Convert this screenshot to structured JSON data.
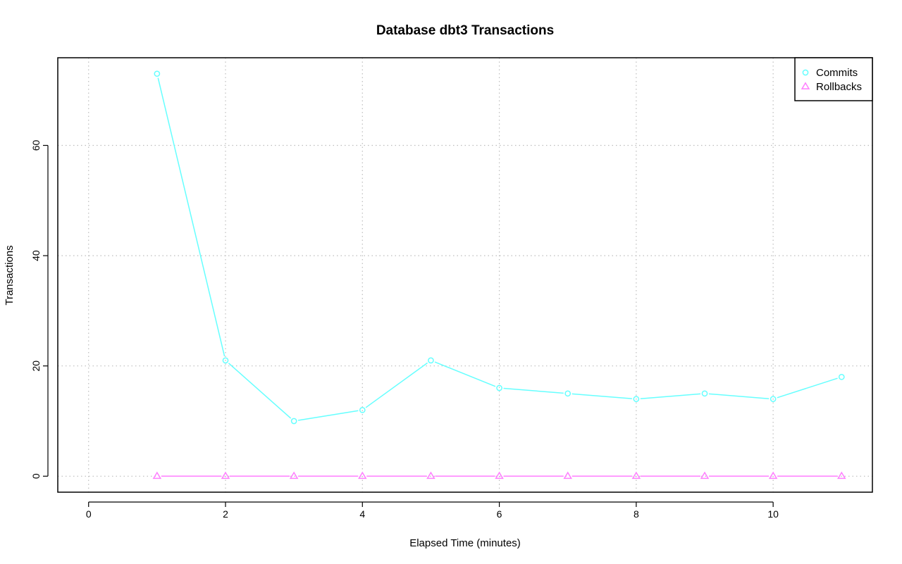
{
  "chart_data": {
    "type": "line",
    "title": "Database dbt3 Transactions",
    "xlabel": "Elapsed Time (minutes)",
    "ylabel": "Transactions",
    "xlim": [
      -0.45,
      11.45
    ],
    "ylim": [
      -2.9,
      75.9
    ],
    "xticks": [
      0,
      2,
      4,
      6,
      8,
      10
    ],
    "yticks": [
      0,
      20,
      40,
      60
    ],
    "grid": true,
    "legend_position": "top-right",
    "x": [
      1,
      2,
      3,
      4,
      5,
      6,
      7,
      8,
      9,
      10,
      11
    ],
    "series": [
      {
        "name": "Commits",
        "color": "#66ffff",
        "marker": "circle",
        "values": [
          73,
          21,
          10,
          12,
          21,
          16,
          15,
          14,
          15,
          14,
          18
        ]
      },
      {
        "name": "Rollbacks",
        "color": "#ff7fff",
        "marker": "triangle",
        "values": [
          0,
          0,
          0,
          0,
          0,
          0,
          0,
          0,
          0,
          0,
          0
        ]
      }
    ]
  }
}
